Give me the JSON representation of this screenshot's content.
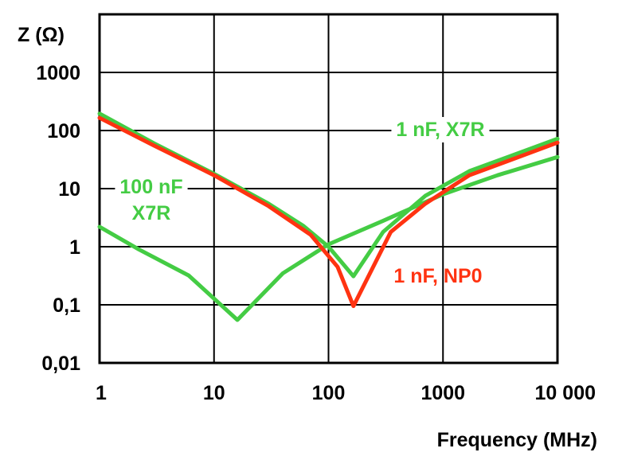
{
  "chart_data": {
    "type": "line",
    "xscale": "log",
    "yscale": "log",
    "xlim": [
      1,
      10000
    ],
    "ylim": [
      0.01,
      10000
    ],
    "grid": true,
    "xlabel": "Frequency (MHz)",
    "ylabel": "Z  (Ω)",
    "x_ticks": [
      {
        "value": 1,
        "label": "1"
      },
      {
        "value": 10,
        "label": "10"
      },
      {
        "value": 100,
        "label": "100"
      },
      {
        "value": 1000,
        "label": "1000"
      },
      {
        "value": 10000,
        "label": "10 000"
      }
    ],
    "y_ticks": [
      {
        "value": 0.01,
        "label": "0,01"
      },
      {
        "value": 0.1,
        "label": "0,1"
      },
      {
        "value": 1,
        "label": "1"
      },
      {
        "value": 10,
        "label": "10"
      },
      {
        "value": 100,
        "label": "100"
      },
      {
        "value": 1000,
        "label": "1000"
      }
    ],
    "series": [
      {
        "label_lines": [
          "100 nF",
          "X7R"
        ],
        "color": "#44cc44",
        "points": [
          [
            1,
            2.2
          ],
          [
            2.2,
            0.9
          ],
          [
            6,
            0.32
          ],
          [
            16,
            0.055
          ],
          [
            40,
            0.35
          ],
          [
            100,
            1.1
          ],
          [
            300,
            2.8
          ],
          [
            1000,
            8
          ],
          [
            3000,
            17
          ],
          [
            10000,
            35
          ]
        ]
      },
      {
        "label_lines": [
          "1 nF, X7R"
        ],
        "color": "#44cc44",
        "points": [
          [
            1,
            195
          ],
          [
            3,
            60
          ],
          [
            10,
            18
          ],
          [
            30,
            5.5
          ],
          [
            60,
            2.3
          ],
          [
            100,
            1.0
          ],
          [
            165,
            0.31
          ],
          [
            300,
            1.8
          ],
          [
            700,
            7.5
          ],
          [
            1700,
            20
          ],
          [
            10000,
            72
          ]
        ]
      },
      {
        "label_lines": [
          "1 nF, NP0"
        ],
        "color": "#ff3311",
        "points": [
          [
            1,
            165
          ],
          [
            3,
            55
          ],
          [
            10,
            17
          ],
          [
            30,
            5
          ],
          [
            70,
            1.6
          ],
          [
            120,
            0.45
          ],
          [
            165,
            0.095
          ],
          [
            350,
            1.8
          ],
          [
            700,
            5.5
          ],
          [
            1700,
            17
          ],
          [
            10000,
            62
          ]
        ]
      }
    ]
  }
}
